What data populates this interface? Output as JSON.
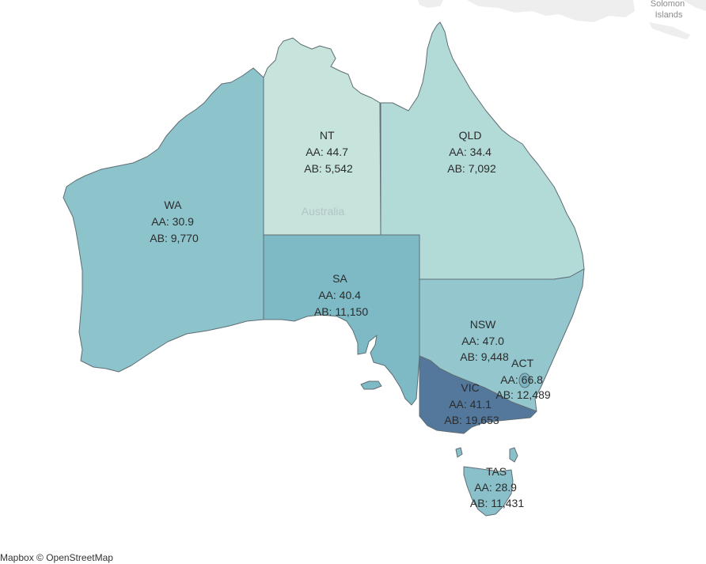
{
  "map": {
    "country_label": "Australia",
    "basemap_labels": [
      {
        "id": "solomon-islands",
        "lines": [
          "Solomon",
          "Islands"
        ]
      }
    ],
    "attribution": "Mapbox © OpenStreetMap"
  },
  "colors": {
    "WA": "#8dc3cb",
    "NT": "#c6e4dc",
    "QLD": "#b2dbd7",
    "SA": "#7dbac5",
    "NSW": "#93c6cd",
    "ACT": "#7ab6c3",
    "VIC": "#53789b",
    "TAS": "#8ac0ca",
    "land_outside": "#eeeeee"
  },
  "chart_data": {
    "type": "choropleth",
    "measures": [
      "AA",
      "AB"
    ],
    "regions": [
      {
        "id": "WA",
        "name": "WA",
        "aa": "30.9",
        "ab": "9,770"
      },
      {
        "id": "NT",
        "name": "NT",
        "aa": "44.7",
        "ab": "5,542"
      },
      {
        "id": "QLD",
        "name": "QLD",
        "aa": "34.4",
        "ab": "7,092"
      },
      {
        "id": "SA",
        "name": "SA",
        "aa": "40.4",
        "ab": "11,150"
      },
      {
        "id": "NSW",
        "name": "NSW",
        "aa": "47.0",
        "ab": "9,448"
      },
      {
        "id": "ACT",
        "name": "ACT",
        "aa": "66.8",
        "ab": "12,489"
      },
      {
        "id": "VIC",
        "name": "VIC",
        "aa": "41.1",
        "ab": "19,653"
      },
      {
        "id": "TAS",
        "name": "TAS",
        "aa": "28.9",
        "ab": "11,431"
      }
    ]
  }
}
